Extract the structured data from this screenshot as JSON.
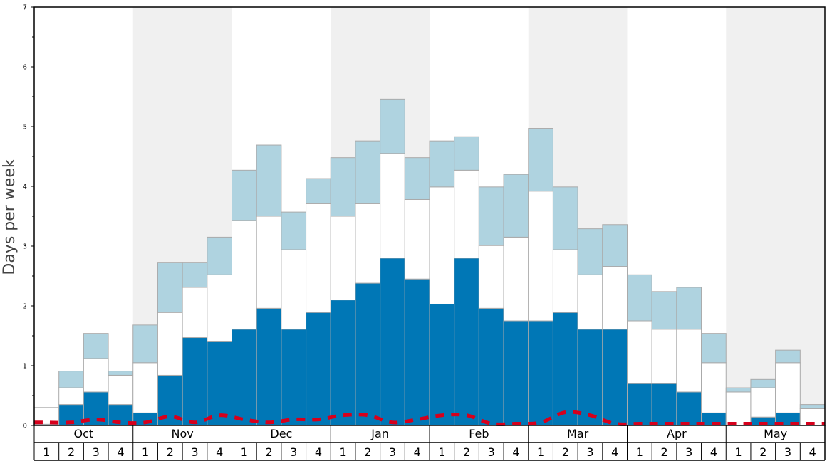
{
  "chart_data": {
    "type": "bar",
    "ylabel": "Days per week",
    "ylim": [
      0,
      7
    ],
    "yticks": [
      "0",
      "1",
      "2",
      "3",
      "4",
      "5",
      "6",
      "7"
    ],
    "months": [
      "Oct",
      "Nov",
      "Dec",
      "Jan",
      "Feb",
      "Mar",
      "Apr",
      "May"
    ],
    "week_labels": [
      "1",
      "2",
      "3",
      "4"
    ],
    "shaded_months": [
      "Nov",
      "Jan",
      "Mar",
      "May"
    ],
    "colors": {
      "dark": "#0077b6",
      "middle": "#ffffff",
      "light": "#afd3e0",
      "outline": "#aaaaaa",
      "line": "#d6001c",
      "shade": "#f0f0f0"
    },
    "series": [
      {
        "values": [
          0.02,
          0.35,
          0.56,
          0.35,
          0.21,
          0.84,
          1.47,
          1.4,
          1.61,
          1.96,
          1.61,
          1.89,
          2.1,
          2.38,
          2.8,
          2.45,
          2.03,
          2.8,
          1.96,
          1.75,
          1.75,
          1.89,
          1.61,
          1.61,
          0.7,
          0.7,
          0.56,
          0.21,
          0.0,
          0.14,
          0.21,
          0.0
        ]
      },
      {
        "values": [
          0.28,
          0.28,
          0.56,
          0.49,
          0.84,
          1.05,
          0.84,
          1.12,
          1.82,
          1.54,
          1.33,
          1.82,
          1.4,
          1.33,
          1.75,
          1.33,
          1.96,
          1.47,
          1.05,
          1.4,
          2.17,
          1.05,
          0.91,
          1.05,
          1.05,
          0.91,
          1.05,
          0.84,
          0.56,
          0.49,
          0.84,
          0.28
        ]
      },
      {
        "values": [
          0.0,
          0.28,
          0.42,
          0.07,
          0.63,
          0.84,
          0.42,
          0.63,
          0.84,
          1.19,
          0.63,
          0.42,
          0.98,
          1.05,
          0.91,
          0.7,
          0.77,
          0.56,
          0.98,
          1.05,
          1.05,
          1.05,
          0.77,
          0.7,
          0.77,
          0.63,
          0.7,
          0.49,
          0.07,
          0.14,
          0.21,
          0.07
        ]
      },
      {
        "values": [
          0.05,
          0.05,
          0.1,
          0.05,
          0.05,
          0.15,
          0.05,
          0.17,
          0.1,
          0.05,
          0.1,
          0.1,
          0.17,
          0.17,
          0.05,
          0.1,
          0.17,
          0.17,
          0.03,
          0.03,
          0.05,
          0.22,
          0.17,
          0.03,
          0.03,
          0.03,
          0.03,
          0.03,
          0.03,
          0.03,
          0.03,
          0.03
        ]
      }
    ]
  }
}
